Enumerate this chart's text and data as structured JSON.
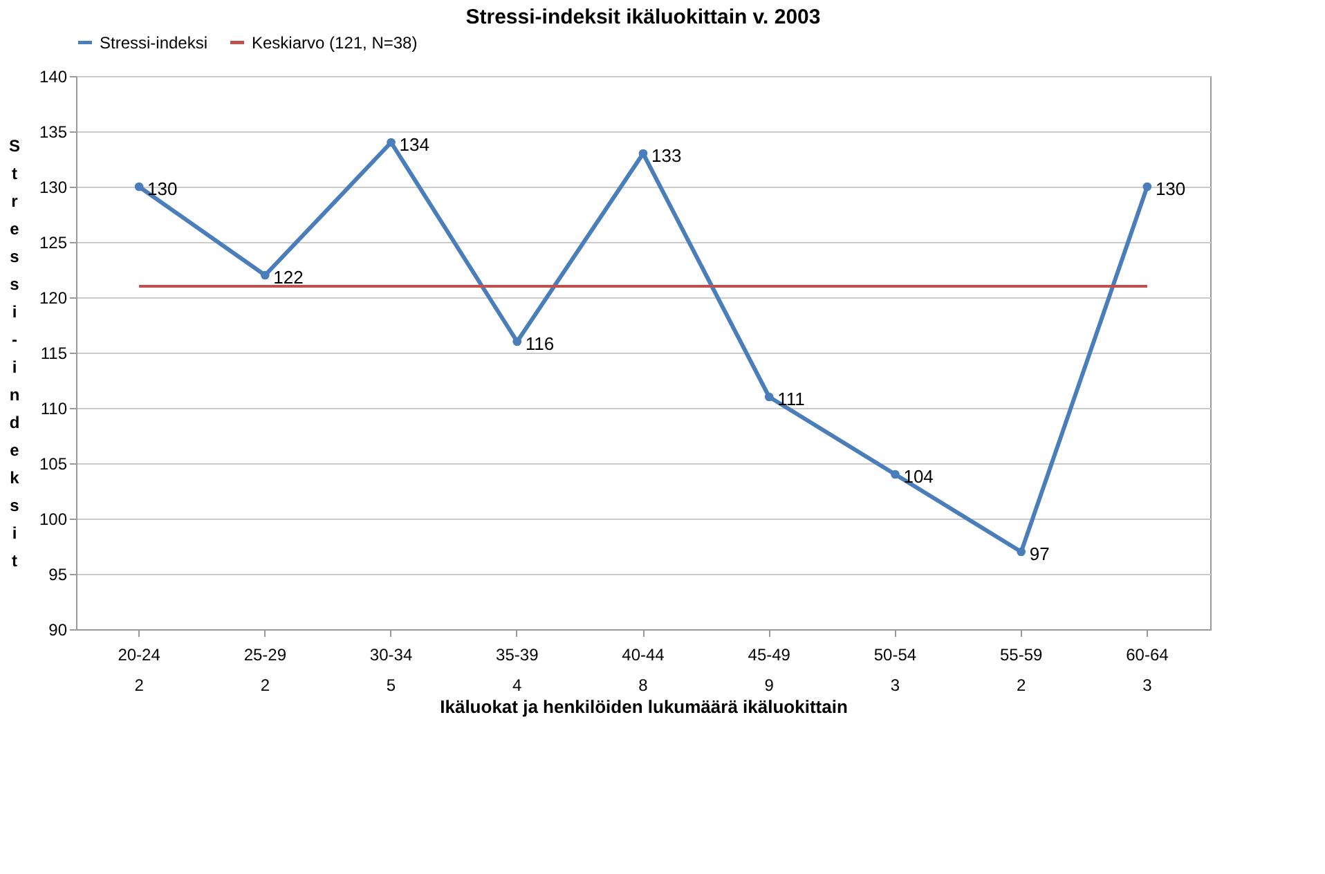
{
  "chart_data": {
    "type": "line",
    "title": "Stressi-indeksit ikäluokittain v. 2003",
    "xlabel": "Ikäluokat ja henkilöiden lukumäärä ikäluokittain",
    "ylabel": "Stressi-indeksit",
    "categories": [
      "20-24\n2",
      "25-29\n2",
      "30-34\n5",
      "35-39\n4",
      "40-44\n8",
      "45-49\n9",
      "50-54\n3",
      "55-59\n2",
      "60-64\n3"
    ],
    "series": [
      {
        "name": "Stressi-indeksi",
        "color": "#4a7ebb",
        "values": [
          130,
          122,
          134,
          116,
          133,
          111,
          104,
          97,
          130
        ]
      }
    ],
    "ref_lines": [
      {
        "axis": "y",
        "value": 121,
        "label": "Keskiarvo (121, N=38)",
        "color": "#c0504d"
      }
    ],
    "ylim": [
      90,
      140
    ],
    "yticks": [
      90,
      95,
      100,
      105,
      110,
      115,
      120,
      125,
      130,
      135,
      140
    ],
    "grid": "y",
    "legend": "top",
    "marker": "circle",
    "line_style": "solid",
    "data_labels": true
  }
}
